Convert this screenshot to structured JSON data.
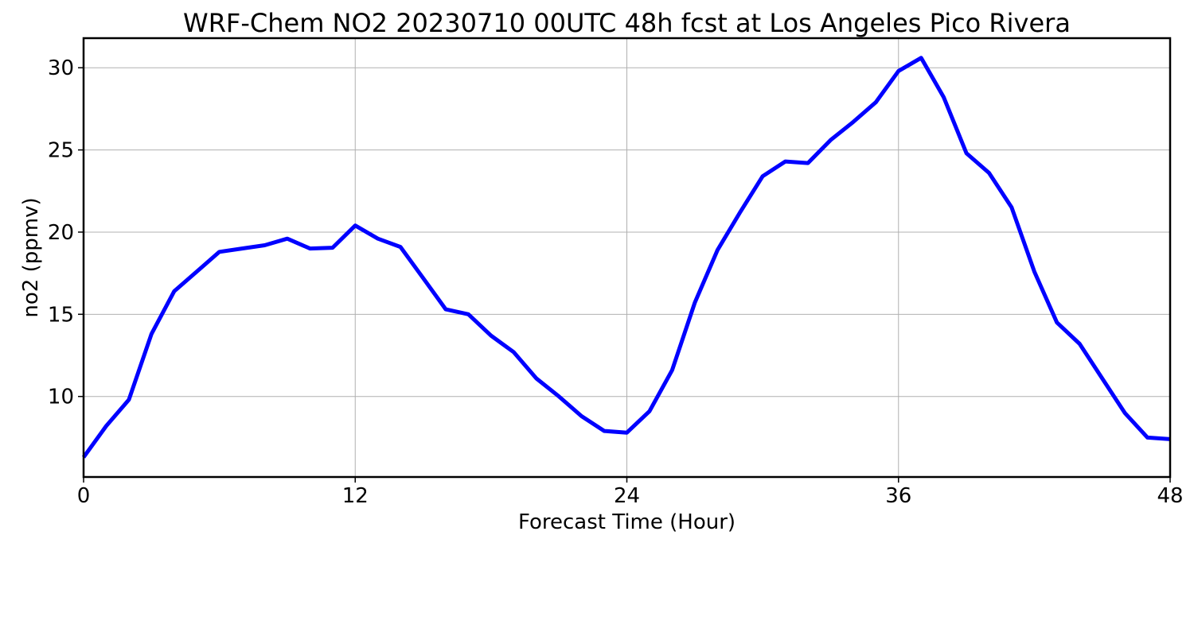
{
  "chart_data": {
    "type": "line",
    "title": "WRF-Chem NO2  20230710 00UTC 48h fcst at Los Angeles Pico Rivera",
    "xlabel": "Forecast Time (Hour)",
    "ylabel": "no2  (ppmv)",
    "xlim": [
      0,
      48
    ],
    "ylim": [
      5.1,
      31.8
    ],
    "xticks": [
      0,
      12,
      24,
      36,
      48
    ],
    "xtick_labels": [
      "0",
      "12",
      "24",
      "36",
      "48"
    ],
    "yticks": [
      10,
      15,
      20,
      25,
      30
    ],
    "ytick_labels": [
      "10",
      "15",
      "20",
      "25",
      "30"
    ],
    "grid": true,
    "legend": "none",
    "series": [
      {
        "color": "#0000ff",
        "x": [
          0,
          1,
          2,
          3,
          4,
          5,
          6,
          7,
          8,
          9,
          10,
          11,
          12,
          13,
          14,
          15,
          16,
          17,
          18,
          19,
          20,
          21,
          22,
          23,
          24,
          25,
          26,
          27,
          28,
          29,
          30,
          31,
          32,
          33,
          34,
          35,
          36,
          37,
          38,
          39,
          40,
          41,
          42,
          43,
          44,
          45,
          46,
          47,
          48
        ],
        "values": [
          6.3,
          8.2,
          9.8,
          13.8,
          16.4,
          17.6,
          18.8,
          19.0,
          19.2,
          19.6,
          19.0,
          19.05,
          20.4,
          19.6,
          19.1,
          17.2,
          15.3,
          15.0,
          13.7,
          12.7,
          11.1,
          10.0,
          8.8,
          7.9,
          7.8,
          9.1,
          11.6,
          15.7,
          18.9,
          21.2,
          23.4,
          24.3,
          24.2,
          25.6,
          26.7,
          27.9,
          29.8,
          30.6,
          28.2,
          24.8,
          23.6,
          21.5,
          17.6,
          14.5,
          13.2,
          11.1,
          9.0,
          7.5,
          7.4
        ]
      }
    ]
  }
}
